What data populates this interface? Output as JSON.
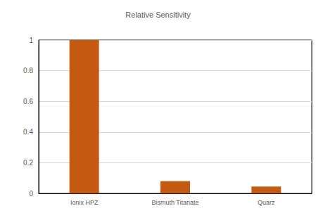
{
  "chart_data": {
    "type": "bar",
    "title": "Relative Sensitivity",
    "categories": [
      "Ionix HPZ",
      "Bismuth Titanate",
      "Quarz"
    ],
    "values": [
      1,
      0.08,
      0.045
    ],
    "color": "#c55a11",
    "ylim": [
      0,
      1
    ],
    "yticks": [
      0,
      0.2,
      0.4,
      0.6,
      0.8,
      1
    ],
    "grid": true
  }
}
